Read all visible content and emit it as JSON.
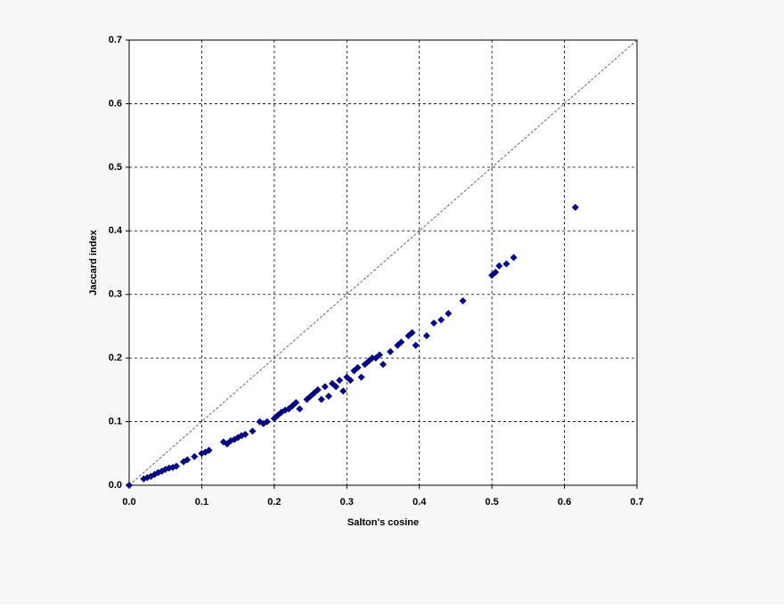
{
  "chart_data": {
    "type": "scatter",
    "x_label": "Salton's cosine",
    "y_label": "Jaccard index",
    "color": "#000080",
    "grid": true,
    "xlim": [
      0,
      0.7
    ],
    "ylim": [
      0,
      0.7
    ],
    "xticks": [
      {
        "value": 0,
        "label": "0.0"
      },
      0.1,
      0.2,
      0.3,
      0.4,
      0.5,
      0.6,
      0.7
    ],
    "yticks": [
      {
        "value": 0,
        "label": "0.0"
      },
      0.1,
      0.2,
      0.3,
      0.4,
      0.5,
      0.6,
      0.7
    ],
    "x": [
      0,
      0.02,
      0.025,
      0.03,
      0.035,
      0.04,
      0.045,
      0.05,
      0.055,
      0.06,
      0.065,
      0.075,
      0.08,
      0.09,
      0.1,
      0.105,
      0.11,
      0.13,
      0.135,
      0.14,
      0.145,
      0.15,
      0.155,
      0.16,
      0.17,
      0.18,
      0.185,
      0.19,
      0.2,
      0.205,
      0.21,
      0.215,
      0.22,
      0.225,
      0.23,
      0.235,
      0.245,
      0.25,
      0.255,
      0.26,
      0.265,
      0.27,
      0.275,
      0.28,
      0.285,
      0.29,
      0.295,
      0.3,
      0.305,
      0.31,
      0.315,
      0.32,
      0.325,
      0.33,
      0.335,
      0.34,
      0.345,
      0.35,
      0.36,
      0.37,
      0.375,
      0.385,
      0.39,
      0.395,
      0.41,
      0.42,
      0.43,
      0.44,
      0.46,
      0.5,
      0.505,
      0.51,
      0.52,
      0.53,
      0.615
    ],
    "y": [
      0,
      0.01,
      0.012,
      0.014,
      0.017,
      0.02,
      0.022,
      0.025,
      0.027,
      0.028,
      0.03,
      0.037,
      0.04,
      0.045,
      0.05,
      0.052,
      0.055,
      0.068,
      0.065,
      0.07,
      0.072,
      0.075,
      0.078,
      0.08,
      0.085,
      0.1,
      0.097,
      0.1,
      0.105,
      0.11,
      0.115,
      0.118,
      0.12,
      0.125,
      0.13,
      0.12,
      0.135,
      0.14,
      0.145,
      0.15,
      0.135,
      0.155,
      0.14,
      0.16,
      0.155,
      0.165,
      0.148,
      0.17,
      0.165,
      0.18,
      0.185,
      0.17,
      0.19,
      0.195,
      0.2,
      0.2,
      0.205,
      0.19,
      0.21,
      0.22,
      0.225,
      0.235,
      0.24,
      0.22,
      0.235,
      0.255,
      0.26,
      0.27,
      0.29,
      0.33,
      0.335,
      0.345,
      0.348,
      0.358,
      0.437
    ]
  }
}
